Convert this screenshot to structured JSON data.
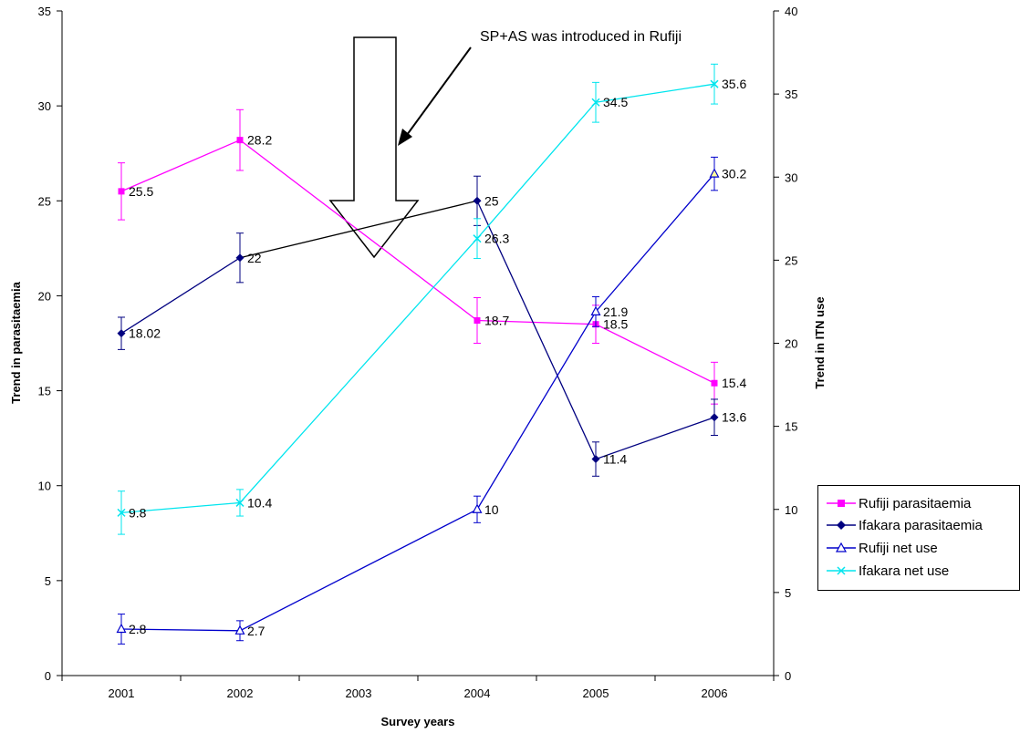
{
  "chart_data": {
    "type": "line",
    "xlabel": "Survey years",
    "ylabel": "Trend in parasitaemia",
    "y2label": "Trend in ITN use",
    "categories": [
      "2001",
      "2002",
      "2003",
      "2004",
      "2005",
      "2006"
    ],
    "ylim": [
      0,
      35
    ],
    "y2lim": [
      0,
      40
    ],
    "yticks": [
      0,
      5,
      10,
      15,
      20,
      25,
      30,
      35
    ],
    "y2ticks": [
      0,
      5,
      10,
      15,
      20,
      25,
      30,
      35,
      40
    ],
    "legend_position": "right",
    "annotation": "SP+AS was introduced in Rufiji",
    "series": [
      {
        "name": "Rufiji parasitaemia",
        "axis": "left",
        "color": "#ff00ff",
        "marker": "square",
        "points": [
          {
            "x": "2001",
            "y": 25.5,
            "label": "25.5",
            "err": 1.5
          },
          {
            "x": "2002",
            "y": 28.2,
            "label": "28.2",
            "err": 1.6
          },
          {
            "x": "2004",
            "y": 18.7,
            "label": "18.7",
            "err": 1.2
          },
          {
            "x": "2005",
            "y": 18.5,
            "label": "18.5",
            "err": 1.0
          },
          {
            "x": "2006",
            "y": 15.4,
            "label": "15.4",
            "err": 1.1
          }
        ]
      },
      {
        "name": "Ifakara parasitaemia",
        "axis": "left",
        "color": "#000080",
        "marker": "diamond",
        "points": [
          {
            "x": "2001",
            "y": 18.02,
            "label": "18.02",
            "err": 0.85
          },
          {
            "x": "2002",
            "y": 22,
            "label": "22",
            "err": 1.3
          },
          {
            "x": "2004",
            "y": 25,
            "label": "25",
            "err": 1.3
          },
          {
            "x": "2005",
            "y": 11.4,
            "label": "11.4",
            "err": 0.9
          },
          {
            "x": "2006",
            "y": 13.6,
            "label": "13.6",
            "err": 0.95
          }
        ]
      },
      {
        "name": "Rufiji net use",
        "axis": "right",
        "color": "#0000cc",
        "marker": "triangle",
        "points": [
          {
            "x": "2001",
            "y": 2.8,
            "label": "2.8",
            "err": 0.9
          },
          {
            "x": "2002",
            "y": 2.7,
            "label": "2.7",
            "err": 0.6
          },
          {
            "x": "2004",
            "y": 10,
            "label": "10",
            "err": 0.8
          },
          {
            "x": "2005",
            "y": 21.9,
            "label": "21.9",
            "err": 0.9
          },
          {
            "x": "2006",
            "y": 30.2,
            "label": "30.2",
            "err": 1.0
          }
        ]
      },
      {
        "name": "Ifakara net use",
        "axis": "right",
        "color": "#00e5ee",
        "marker": "x",
        "points": [
          {
            "x": "2001",
            "y": 9.8,
            "label": "9.8",
            "err": 1.3
          },
          {
            "x": "2002",
            "y": 10.4,
            "label": "10.4",
            "err": 0.8
          },
          {
            "x": "2004",
            "y": 26.3,
            "label": "26.3",
            "err": 1.2
          },
          {
            "x": "2005",
            "y": 34.5,
            "label": "34.5",
            "err": 1.2
          },
          {
            "x": "2006",
            "y": 35.6,
            "label": "35.6",
            "err": 1.2
          }
        ]
      }
    ]
  }
}
